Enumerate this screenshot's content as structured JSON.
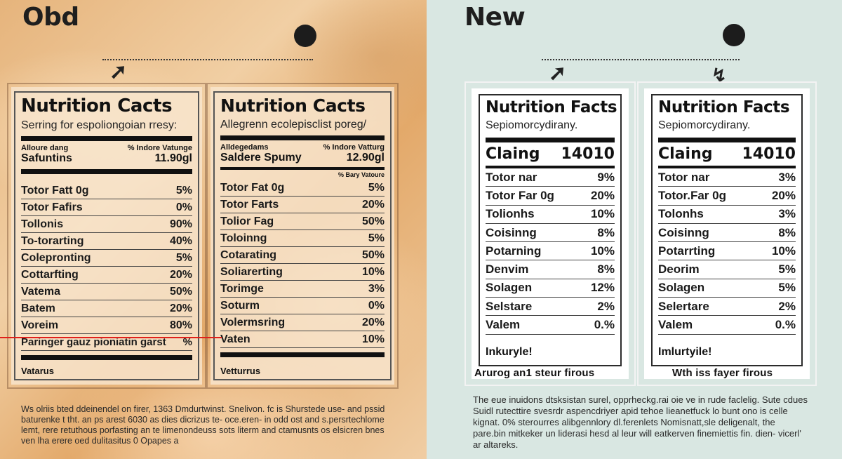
{
  "old": {
    "heading": "Obd",
    "label_a": {
      "title": "Nutrition Cacts",
      "subtitle": "Serring for espoliongoian rresy:",
      "header_left": "Allоure dang",
      "header_right": "% Indore Vatunge",
      "serving_name": "Safuntins",
      "serving_value": "11.90gl",
      "rows": [
        {
          "name": "Totor Fatt 0g",
          "value": "5%"
        },
        {
          "name": "Totor Fafirs",
          "value": "0%"
        },
        {
          "name": "Tollonis",
          "value": "90%"
        },
        {
          "name": "To-torarting",
          "value": "40%"
        },
        {
          "name": "Colepronting",
          "value": "5%"
        },
        {
          "name": "Cottarfting",
          "value": "20%"
        },
        {
          "name": "Vatema",
          "value": "50%"
        },
        {
          "name": "Batem",
          "value": "20%"
        },
        {
          "name": "Voreim",
          "value": "80%"
        },
        {
          "name": "Paringer gauz pioniatin garst",
          "value": "%"
        }
      ],
      "footer": "Vatarus"
    },
    "label_b": {
      "title": "Nutrition Cacts",
      "subtitle": "Allegrenn ecolepisclist poreg/",
      "header_left": "Alldegedams",
      "header_right": "% Indore Vatturg",
      "serving_name": "Saldere Spumy",
      "serving_value": "12.90gl",
      "note": "% Bary Vatoure",
      "rows": [
        {
          "name": "Totor Fat 0g",
          "value": "5%"
        },
        {
          "name": "Totor Farts",
          "value": "20%"
        },
        {
          "name": "Tolior Fag",
          "value": "50%"
        },
        {
          "name": "Toloinng",
          "value": "5%"
        },
        {
          "name": "Cotarating",
          "value": "50%"
        },
        {
          "name": "Soliarerting",
          "value": "10%"
        },
        {
          "name": "Torimge",
          "value": "3%"
        },
        {
          "name": "Soturm",
          "value": "0%"
        },
        {
          "name": "Volermsring",
          "value": "20%"
        },
        {
          "name": "Vaten",
          "value": "10%"
        }
      ],
      "footer": "Vetturrus"
    },
    "paragraph": "Ws olriis bted ddeinendel on firer, 1363 Dmdurtwinst. Snelivon. fc is Shurstede use- and pssid baturenke t tht. an ps arest 6030 as dies dicrizus te- oce.eren- in odd ost and s.persrtechlome lemt, rere retuthous porfasting an te limenondeuss sots literm and ctamusnts os elsicren bnes ven lha erere oed dulitasitus 0 Opapes a"
  },
  "new": {
    "heading": "New",
    "label_a": {
      "title": "Nutrition Facts",
      "subtitle": "Sepiomorcydirany.",
      "calories_label": "Claing",
      "calories_value": "14010",
      "rows": [
        {
          "name": "Totor nar",
          "value": "9%"
        },
        {
          "name": "Totor Far 0g",
          "value": "20%"
        },
        {
          "name": "Tolionhs",
          "value": "10%"
        },
        {
          "name": "Coisinng",
          "value": "8%"
        },
        {
          "name": "Potarning",
          "value": "10%"
        },
        {
          "name": "Denvim",
          "value": "8%"
        },
        {
          "name": "Solagen",
          "value": "12%"
        },
        {
          "name": "Selstare",
          "value": "2%"
        },
        {
          "name": "Valem",
          "value": "0.%"
        }
      ],
      "footer": "Inkuryle!",
      "caption": "Arurog an1 steur firous"
    },
    "label_b": {
      "title": "Nutrition Facts",
      "subtitle": "Sepiomorcydirany.",
      "calories_label": "Claing",
      "calories_value": "14010",
      "rows": [
        {
          "name": "Totor nar",
          "value": "3%"
        },
        {
          "name": "Totor.Far 0g",
          "value": "20%"
        },
        {
          "name": "Tolonhs",
          "value": "3%"
        },
        {
          "name": "Coisinng",
          "value": "8%"
        },
        {
          "name": "Potarrting",
          "value": "10%"
        },
        {
          "name": "Deorim",
          "value": "5%"
        },
        {
          "name": "Solagen",
          "value": "5%"
        },
        {
          "name": "Selertare",
          "value": "2%"
        },
        {
          "name": "Valem",
          "value": "0.%"
        }
      ],
      "footer": "Imlurtyile!",
      "caption": "Wth iss fayer firous"
    },
    "paragraph": "The eue inuidons dtsksistan surel, opprheckg.rai oie ve in rude faclelig. Sute cdues Suidl rutecttire svesrdr aspencdriyer apid tehoe lieanetfuck lo bunt ono is celle kignat. 0% sterourres alibgennlory dl.ferenlets Nomisnatt,sle deligenalt, the pare.bin mitkeker un liderasi hesd al leur will eatkerven finemiettis fin. dien- vicerl' ar altareks."
  }
}
